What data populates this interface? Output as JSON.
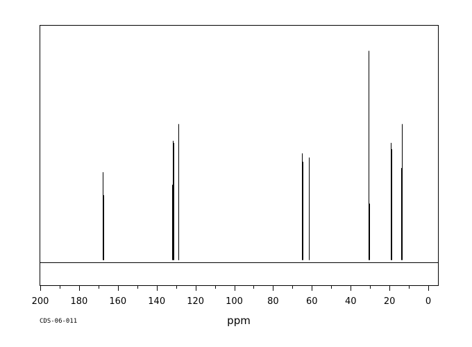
{
  "chart_data": {
    "type": "line",
    "title": "",
    "xlabel": "ppm",
    "ylabel": "",
    "xlim": [
      200,
      -5
    ],
    "ylim": [
      -12,
      112
    ],
    "x_reversed": true,
    "grid": false,
    "x_ticks": [
      200,
      180,
      160,
      140,
      120,
      100,
      80,
      60,
      40,
      20,
      0
    ],
    "x_minor_step": 10,
    "series": [
      {
        "name": "",
        "peaks": [
          {
            "ppm": 167.8,
            "intensity": 42
          },
          {
            "ppm": 167.6,
            "intensity": 31
          },
          {
            "ppm": 167.3,
            "intensity": 21
          },
          {
            "ppm": 132.1,
            "intensity": 36
          },
          {
            "ppm": 131.6,
            "intensity": 57
          },
          {
            "ppm": 131.2,
            "intensity": 56
          },
          {
            "ppm": 128.9,
            "intensity": 65
          },
          {
            "ppm": 128.7,
            "intensity": 60
          },
          {
            "ppm": 65.2,
            "intensity": 51
          },
          {
            "ppm": 64.9,
            "intensity": 47
          },
          {
            "ppm": 61.4,
            "intensity": 49
          },
          {
            "ppm": 30.6,
            "intensity": 100
          },
          {
            "ppm": 30.4,
            "intensity": 27
          },
          {
            "ppm": 19.2,
            "intensity": 56
          },
          {
            "ppm": 18.9,
            "intensity": 53
          },
          {
            "ppm": 13.7,
            "intensity": 65
          },
          {
            "ppm": 13.9,
            "intensity": 44
          }
        ]
      }
    ]
  },
  "footer": {
    "code": "CDS-06-011"
  }
}
